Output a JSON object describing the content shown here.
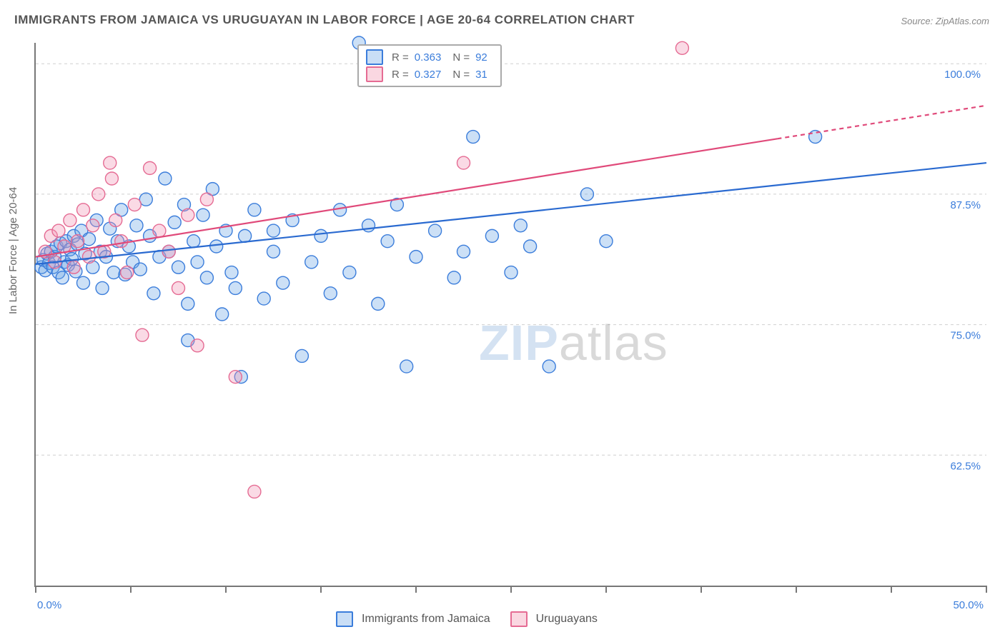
{
  "title": "IMMIGRANTS FROM JAMAICA VS URUGUAYAN IN LABOR FORCE | AGE 20-64 CORRELATION CHART",
  "source": "Source: ZipAtlas.com",
  "ylabel": "In Labor Force | Age 20-64",
  "watermark": {
    "part1": "ZIP",
    "part2": "atlas"
  },
  "chart": {
    "type": "scatter",
    "background_color": "#ffffff",
    "grid_color": "#cfcfcf",
    "axis_color": "#777777",
    "label_color": "#666666",
    "value_color": "#3b7ddb",
    "xlim": [
      0,
      50
    ],
    "ylim": [
      50,
      102
    ],
    "x_ticks": [
      0,
      5,
      10,
      15,
      20,
      25,
      30,
      35,
      40,
      45,
      50
    ],
    "x_tick_labels": {
      "0": "0.0%",
      "50": "50.0%"
    },
    "y_ticks": [
      62.5,
      75.0,
      87.5,
      100.0
    ],
    "y_tick_labels": [
      "62.5%",
      "75.0%",
      "87.5%",
      "100.0%"
    ],
    "x_tick_length": 10,
    "point_radius": 9,
    "point_stroke_width": 1.4,
    "trend_line_width": 2.2,
    "series": [
      {
        "name": "Immigrants from Jamaica",
        "fill": "rgba(110,165,230,0.35)",
        "stroke": "#3b7ddb",
        "trend_color": "#2a6ad0",
        "R": "0.363",
        "N": "92",
        "trend": {
          "x1": 0,
          "y1": 80.8,
          "x2": 50,
          "y2": 90.5,
          "dash_from_x": 50
        },
        "points": [
          [
            0.3,
            80.5
          ],
          [
            0.4,
            81.2
          ],
          [
            0.5,
            80.2
          ],
          [
            0.6,
            81.8
          ],
          [
            0.7,
            80.9
          ],
          [
            0.8,
            82.0
          ],
          [
            0.9,
            80.5
          ],
          [
            1.0,
            81.5
          ],
          [
            1.1,
            82.5
          ],
          [
            1.2,
            80.0
          ],
          [
            1.3,
            82.8
          ],
          [
            1.4,
            79.5
          ],
          [
            1.5,
            81.0
          ],
          [
            1.6,
            83.0
          ],
          [
            1.7,
            80.7
          ],
          [
            1.8,
            82.2
          ],
          [
            1.9,
            81.3
          ],
          [
            2.0,
            83.5
          ],
          [
            2.1,
            80.1
          ],
          [
            2.2,
            82.7
          ],
          [
            2.4,
            84.0
          ],
          [
            2.5,
            79.0
          ],
          [
            2.6,
            81.8
          ],
          [
            2.8,
            83.2
          ],
          [
            3.0,
            80.5
          ],
          [
            3.2,
            85.0
          ],
          [
            3.4,
            82.0
          ],
          [
            3.5,
            78.5
          ],
          [
            3.7,
            81.5
          ],
          [
            3.9,
            84.2
          ],
          [
            4.1,
            80.0
          ],
          [
            4.3,
            83.0
          ],
          [
            4.5,
            86.0
          ],
          [
            4.7,
            79.8
          ],
          [
            4.9,
            82.5
          ],
          [
            5.1,
            81.0
          ],
          [
            5.3,
            84.5
          ],
          [
            5.5,
            80.3
          ],
          [
            5.8,
            87.0
          ],
          [
            6.0,
            83.5
          ],
          [
            6.2,
            78.0
          ],
          [
            6.5,
            81.5
          ],
          [
            6.8,
            89.0
          ],
          [
            7.0,
            82.0
          ],
          [
            7.3,
            84.8
          ],
          [
            7.5,
            80.5
          ],
          [
            7.8,
            86.5
          ],
          [
            8.0,
            77.0
          ],
          [
            8.3,
            83.0
          ],
          [
            8.5,
            81.0
          ],
          [
            8.8,
            85.5
          ],
          [
            9.0,
            79.5
          ],
          [
            9.3,
            88.0
          ],
          [
            9.5,
            82.5
          ],
          [
            9.8,
            76.0
          ],
          [
            10.0,
            84.0
          ],
          [
            10.3,
            80.0
          ],
          [
            10.5,
            78.5
          ],
          [
            10.8,
            70.0
          ],
          [
            11.0,
            83.5
          ],
          [
            11.5,
            86.0
          ],
          [
            12.0,
            77.5
          ],
          [
            12.5,
            82.0
          ],
          [
            13.0,
            79.0
          ],
          [
            13.5,
            85.0
          ],
          [
            14.0,
            72.0
          ],
          [
            14.5,
            81.0
          ],
          [
            15.0,
            83.5
          ],
          [
            15.5,
            78.0
          ],
          [
            16.0,
            86.0
          ],
          [
            16.5,
            80.0
          ],
          [
            17.0,
            102.0
          ],
          [
            17.5,
            84.5
          ],
          [
            18.0,
            77.0
          ],
          [
            18.5,
            83.0
          ],
          [
            19.0,
            86.5
          ],
          [
            19.5,
            71.0
          ],
          [
            20.0,
            81.5
          ],
          [
            21.0,
            84.0
          ],
          [
            22.0,
            79.5
          ],
          [
            22.5,
            82.0
          ],
          [
            23.0,
            93.0
          ],
          [
            24.0,
            83.5
          ],
          [
            25.0,
            80.0
          ],
          [
            25.5,
            84.5
          ],
          [
            26.0,
            82.5
          ],
          [
            27.0,
            71.0
          ],
          [
            29.0,
            87.5
          ],
          [
            30.0,
            83.0
          ],
          [
            41.0,
            93.0
          ],
          [
            12.5,
            84.0
          ],
          [
            8.0,
            73.5
          ]
        ]
      },
      {
        "name": "Uruguayans",
        "fill": "rgba(240,150,180,0.35)",
        "stroke": "#e56b93",
        "trend_color": "#e04a7a",
        "R": "0.327",
        "N": "31",
        "trend": {
          "x1": 0,
          "y1": 81.5,
          "x2": 50,
          "y2": 96.0,
          "dash_from_x": 39
        },
        "points": [
          [
            0.5,
            82.0
          ],
          [
            0.8,
            83.5
          ],
          [
            1.0,
            81.0
          ],
          [
            1.2,
            84.0
          ],
          [
            1.5,
            82.5
          ],
          [
            1.8,
            85.0
          ],
          [
            2.0,
            80.5
          ],
          [
            2.2,
            83.0
          ],
          [
            2.5,
            86.0
          ],
          [
            2.8,
            81.5
          ],
          [
            3.0,
            84.5
          ],
          [
            3.3,
            87.5
          ],
          [
            3.6,
            82.0
          ],
          [
            3.9,
            90.5
          ],
          [
            4.2,
            85.0
          ],
          [
            4.5,
            83.0
          ],
          [
            4.8,
            80.0
          ],
          [
            5.2,
            86.5
          ],
          [
            5.6,
            74.0
          ],
          [
            6.0,
            90.0
          ],
          [
            6.5,
            84.0
          ],
          [
            7.0,
            82.0
          ],
          [
            7.5,
            78.5
          ],
          [
            8.0,
            85.5
          ],
          [
            8.5,
            73.0
          ],
          [
            9.0,
            87.0
          ],
          [
            10.5,
            70.0
          ],
          [
            11.5,
            59.0
          ],
          [
            22.5,
            90.5
          ],
          [
            34.0,
            101.5
          ],
          [
            4.0,
            89.0
          ]
        ]
      }
    ]
  },
  "legend_bottom": [
    {
      "swatch": "blue",
      "label": "Immigrants from Jamaica"
    },
    {
      "swatch": "pink",
      "label": "Uruguayans"
    }
  ]
}
